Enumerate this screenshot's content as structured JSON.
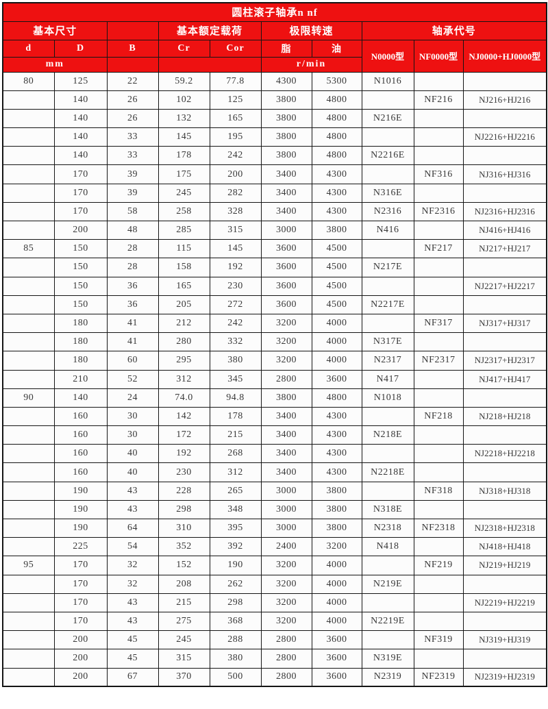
{
  "title": "圆柱滚子轴承n nf",
  "colors": {
    "header_bg": "#ee1111",
    "header_text": "#ffffff",
    "border": "#141414",
    "cell_bg": "#fcfcfc",
    "data_text": "#383838"
  },
  "header": {
    "group_dimensions": "基本尺寸",
    "group_load": "基本额定载荷",
    "group_speed": "极限转速",
    "group_code": "轴承代号",
    "col_d": "d",
    "col_D": "D",
    "col_B": "B",
    "col_Cr": "Cr",
    "col_Cor": "Cor",
    "col_grease": "脂",
    "col_oil": "油",
    "unit_mm": "mm",
    "unit_rmin": "r/min",
    "type_n": "N0000型",
    "type_nf": "NF0000型",
    "type_njhj": "NJ0000+HJ0000型"
  },
  "rows": [
    [
      "80",
      "125",
      "22",
      "59.2",
      "77.8",
      "4300",
      "5300",
      "N1016",
      "",
      ""
    ],
    [
      "",
      "140",
      "26",
      "102",
      "125",
      "3800",
      "4800",
      "",
      "NF216",
      "NJ216+HJ216"
    ],
    [
      "",
      "140",
      "26",
      "132",
      "165",
      "3800",
      "4800",
      "N216E",
      "",
      ""
    ],
    [
      "",
      "140",
      "33",
      "145",
      "195",
      "3800",
      "4800",
      "",
      "",
      "NJ2216+HJ2216"
    ],
    [
      "",
      "140",
      "33",
      "178",
      "242",
      "3800",
      "4800",
      "N2216E",
      "",
      ""
    ],
    [
      "",
      "170",
      "39",
      "175",
      "200",
      "3400",
      "4300",
      "",
      "NF316",
      "NJ316+HJ316"
    ],
    [
      "",
      "170",
      "39",
      "245",
      "282",
      "3400",
      "4300",
      "N316E",
      "",
      ""
    ],
    [
      "",
      "170",
      "58",
      "258",
      "328",
      "3400",
      "4300",
      "N2316",
      "NF2316",
      "NJ2316+HJ2316"
    ],
    [
      "",
      "200",
      "48",
      "285",
      "315",
      "3000",
      "3800",
      "N416",
      "",
      "NJ416+HJ416"
    ],
    [
      "85",
      "150",
      "28",
      "115",
      "145",
      "3600",
      "4500",
      "",
      "NF217",
      "NJ217+HJ217"
    ],
    [
      "",
      "150",
      "28",
      "158",
      "192",
      "3600",
      "4500",
      "N217E",
      "",
      ""
    ],
    [
      "",
      "150",
      "36",
      "165",
      "230",
      "3600",
      "4500",
      "",
      "",
      "NJ2217+HJ2217"
    ],
    [
      "",
      "150",
      "36",
      "205",
      "272",
      "3600",
      "4500",
      "N2217E",
      "",
      ""
    ],
    [
      "",
      "180",
      "41",
      "212",
      "242",
      "3200",
      "4000",
      "",
      "NF317",
      "NJ317+HJ317"
    ],
    [
      "",
      "180",
      "41",
      "280",
      "332",
      "3200",
      "4000",
      "N317E",
      "",
      ""
    ],
    [
      "",
      "180",
      "60",
      "295",
      "380",
      "3200",
      "4000",
      "N2317",
      "NF2317",
      "NJ2317+HJ2317"
    ],
    [
      "",
      "210",
      "52",
      "312",
      "345",
      "2800",
      "3600",
      "N417",
      "",
      "NJ417+HJ417"
    ],
    [
      "90",
      "140",
      "24",
      "74.0",
      "94.8",
      "3800",
      "4800",
      "N1018",
      "",
      ""
    ],
    [
      "",
      "160",
      "30",
      "142",
      "178",
      "3400",
      "4300",
      "",
      "NF218",
      "NJ218+HJ218"
    ],
    [
      "",
      "160",
      "30",
      "172",
      "215",
      "3400",
      "4300",
      "N218E",
      "",
      ""
    ],
    [
      "",
      "160",
      "40",
      "192",
      "268",
      "3400",
      "4300",
      "",
      "",
      "NJ2218+HJ2218"
    ],
    [
      "",
      "160",
      "40",
      "230",
      "312",
      "3400",
      "4300",
      "N2218E",
      "",
      ""
    ],
    [
      "",
      "190",
      "43",
      "228",
      "265",
      "3000",
      "3800",
      "",
      "NF318",
      "NJ318+HJ318"
    ],
    [
      "",
      "190",
      "43",
      "298",
      "348",
      "3000",
      "3800",
      "N318E",
      "",
      ""
    ],
    [
      "",
      "190",
      "64",
      "310",
      "395",
      "3000",
      "3800",
      "N2318",
      "NF2318",
      "NJ2318+HJ2318"
    ],
    [
      "",
      "225",
      "54",
      "352",
      "392",
      "2400",
      "3200",
      "N418",
      "",
      "NJ418+HJ418"
    ],
    [
      "95",
      "170",
      "32",
      "152",
      "190",
      "3200",
      "4000",
      "",
      "NF219",
      "NJ219+HJ219"
    ],
    [
      "",
      "170",
      "32",
      "208",
      "262",
      "3200",
      "4000",
      "N219E",
      "",
      ""
    ],
    [
      "",
      "170",
      "43",
      "215",
      "298",
      "3200",
      "4000",
      "",
      "",
      "NJ2219+HJ2219"
    ],
    [
      "",
      "170",
      "43",
      "275",
      "368",
      "3200",
      "4000",
      "N2219E",
      "",
      ""
    ],
    [
      "",
      "200",
      "45",
      "245",
      "288",
      "2800",
      "3600",
      "",
      "NF319",
      "NJ319+HJ319"
    ],
    [
      "",
      "200",
      "45",
      "315",
      "380",
      "2800",
      "3600",
      "N319E",
      "",
      ""
    ],
    [
      "",
      "200",
      "67",
      "370",
      "500",
      "2800",
      "3600",
      "N2319",
      "NF2319",
      "NJ2319+HJ2319"
    ]
  ]
}
